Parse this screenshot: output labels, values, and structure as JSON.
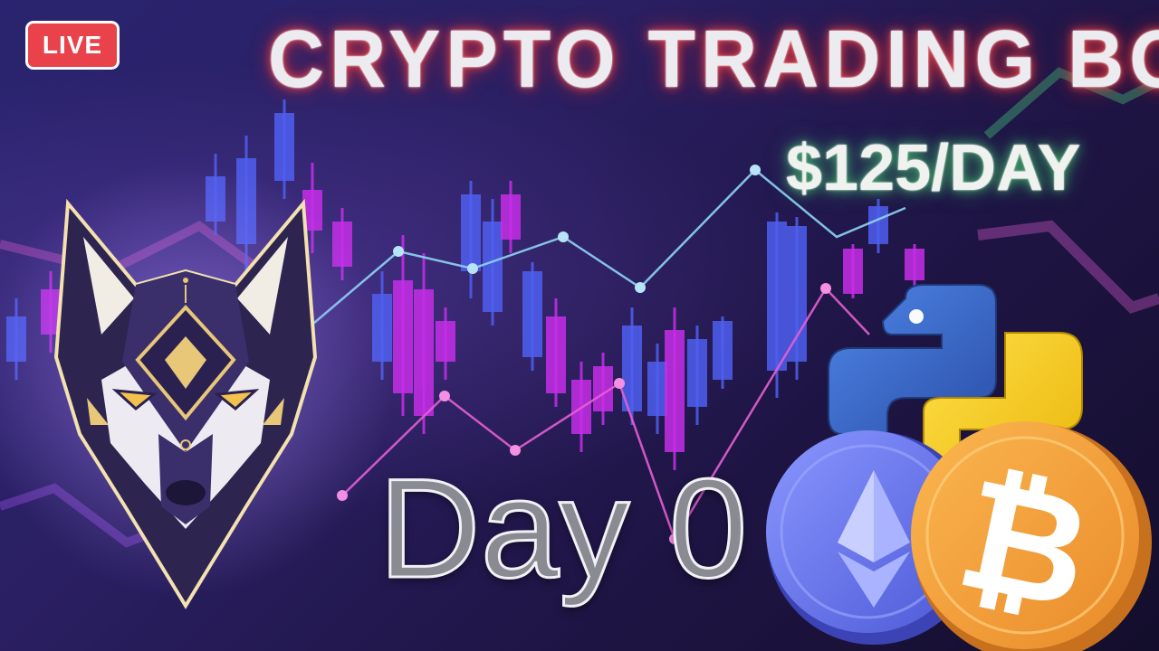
{
  "badge": {
    "label": "LIVE"
  },
  "title": "CRYPTO TRADING BOT",
  "rate": "$125/DAY",
  "day_label": "Day 0",
  "icons": [
    "wolf-logo",
    "python-logo",
    "ethereum-coin-icon",
    "bitcoin-coin-icon",
    "candlestick-chart"
  ],
  "colors": {
    "background": "#241d5a",
    "live_badge": "#e9424a",
    "candle_blue": "#4f5ff0",
    "candle_magenta": "#c52ee8",
    "line_light_blue": "#8fd4f5",
    "line_pink": "#e45fd3",
    "bitcoin_orange": "#f6a13a",
    "ethereum_blue": "#6f7df5"
  }
}
